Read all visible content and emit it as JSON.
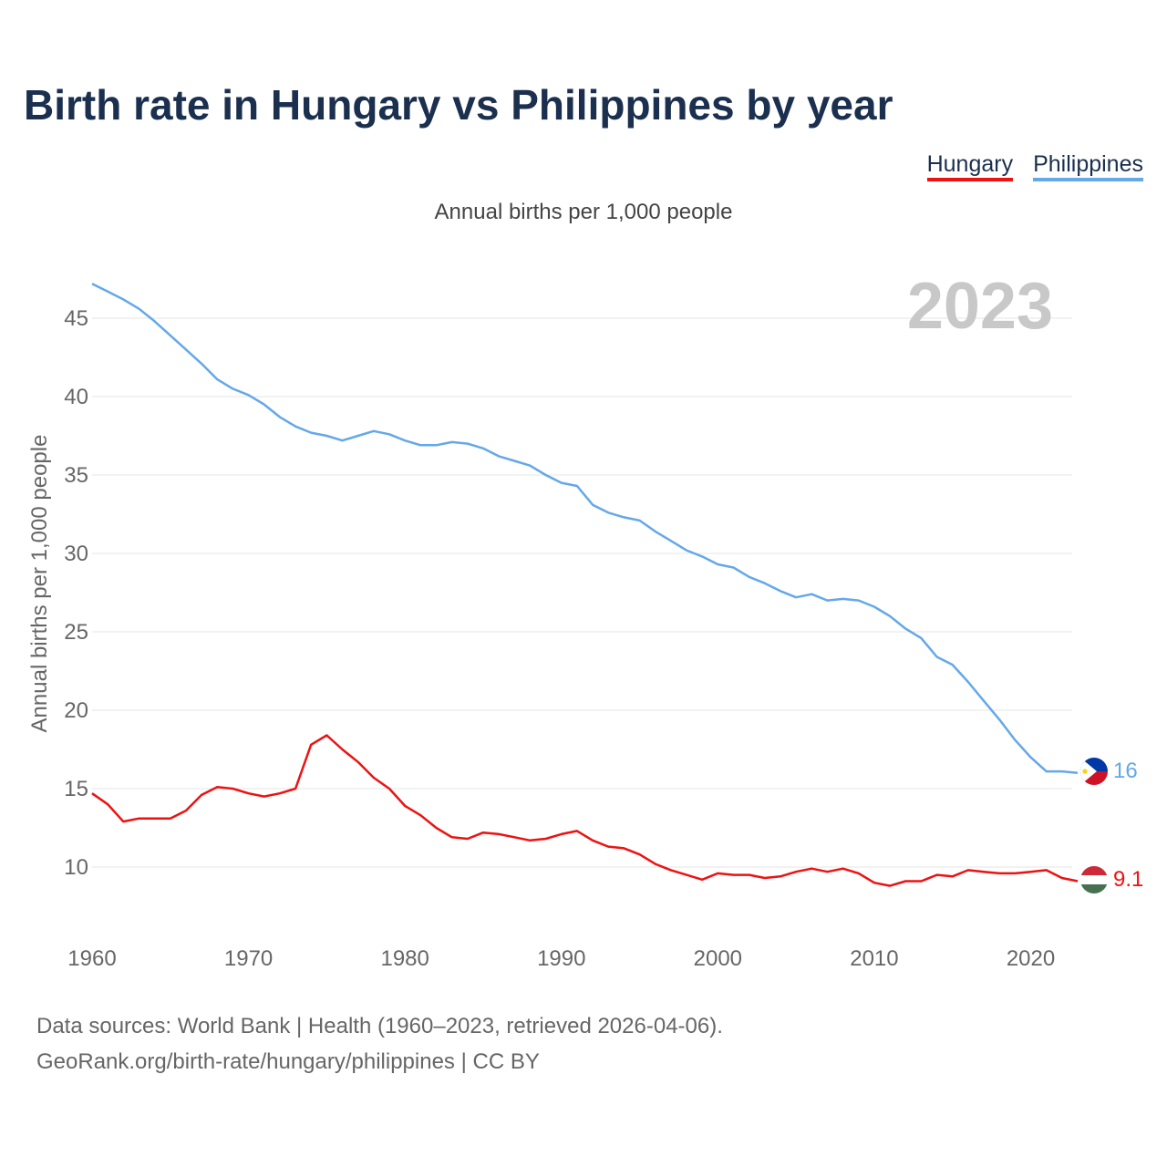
{
  "colors": {
    "title": "#1b2f4f",
    "hungary": "#ee1111",
    "philippines": "#64a8e8",
    "grid": "#e6e6e6",
    "year_watermark": "#c8c8c8",
    "axis_text": "#666666"
  },
  "title": "Birth rate in Hungary vs Philippines by year",
  "legend": [
    {
      "name": "Hungary",
      "color": "#ee1111"
    },
    {
      "name": "Philippines",
      "color": "#64a8e8"
    }
  ],
  "sources": {
    "line1": "Data sources: World Bank | Health (1960–2023, retrieved 2026-04-06).",
    "line2": "GeoRank.org/birth-rate/hungary/philippines | CC BY"
  },
  "chart_data": {
    "type": "line",
    "title": "Annual births per 1,000 people",
    "ylabel": "Annual births per 1,000 people",
    "xlabel": "",
    "year_label": "2023",
    "x_ticks": [
      1960,
      1970,
      1980,
      1990,
      2000,
      2010,
      2020
    ],
    "x_tick_labels": [
      "1960",
      "1970",
      "1980",
      "1990",
      "2000",
      "2010",
      "2020"
    ],
    "y_ticks": [
      10,
      15,
      20,
      25,
      30,
      35,
      40,
      45
    ],
    "y_tick_labels": [
      "10",
      "15",
      "20",
      "25",
      "30",
      "35",
      "40",
      "45"
    ],
    "xlim": [
      1960,
      2023
    ],
    "ylim": [
      6,
      48
    ],
    "x": [
      1960,
      1961,
      1962,
      1963,
      1964,
      1965,
      1966,
      1967,
      1968,
      1969,
      1970,
      1971,
      1972,
      1973,
      1974,
      1975,
      1976,
      1977,
      1978,
      1979,
      1980,
      1981,
      1982,
      1983,
      1984,
      1985,
      1986,
      1987,
      1988,
      1989,
      1990,
      1991,
      1992,
      1993,
      1994,
      1995,
      1996,
      1997,
      1998,
      1999,
      2000,
      2001,
      2002,
      2003,
      2004,
      2005,
      2006,
      2007,
      2008,
      2009,
      2010,
      2011,
      2012,
      2013,
      2014,
      2015,
      2016,
      2017,
      2018,
      2019,
      2020,
      2021,
      2022,
      2023
    ],
    "series": [
      {
        "name": "Hungary",
        "end_label": "9.1",
        "values": [
          14.7,
          14.0,
          12.9,
          13.1,
          13.1,
          13.1,
          13.6,
          14.6,
          15.1,
          15.0,
          14.7,
          14.5,
          14.7,
          15.0,
          17.8,
          18.4,
          17.5,
          16.7,
          15.7,
          15.0,
          13.9,
          13.3,
          12.5,
          11.9,
          11.8,
          12.2,
          12.1,
          11.9,
          11.7,
          11.8,
          12.1,
          12.3,
          11.7,
          11.3,
          11.2,
          10.8,
          10.2,
          9.8,
          9.5,
          9.2,
          9.6,
          9.5,
          9.5,
          9.3,
          9.4,
          9.7,
          9.9,
          9.7,
          9.9,
          9.6,
          9.0,
          8.8,
          9.1,
          9.1,
          9.5,
          9.4,
          9.8,
          9.7,
          9.6,
          9.6,
          9.7,
          9.8,
          9.3,
          9.1
        ]
      },
      {
        "name": "Philippines",
        "end_label": "16",
        "values": [
          47.2,
          46.7,
          46.2,
          45.6,
          44.8,
          43.9,
          43.0,
          42.1,
          41.1,
          40.5,
          40.1,
          39.5,
          38.7,
          38.1,
          37.7,
          37.5,
          37.2,
          37.5,
          37.8,
          37.6,
          37.2,
          36.9,
          36.9,
          37.1,
          37.0,
          36.7,
          36.2,
          35.9,
          35.6,
          35.0,
          34.5,
          34.3,
          33.1,
          32.6,
          32.3,
          32.1,
          31.4,
          30.8,
          30.2,
          29.8,
          29.3,
          29.1,
          28.5,
          28.1,
          27.6,
          27.2,
          27.4,
          27.0,
          27.1,
          27.0,
          26.6,
          26.0,
          25.2,
          24.6,
          23.4,
          22.9,
          21.8,
          20.6,
          19.4,
          18.1,
          17.0,
          16.1,
          16.1,
          16.0
        ]
      }
    ]
  }
}
